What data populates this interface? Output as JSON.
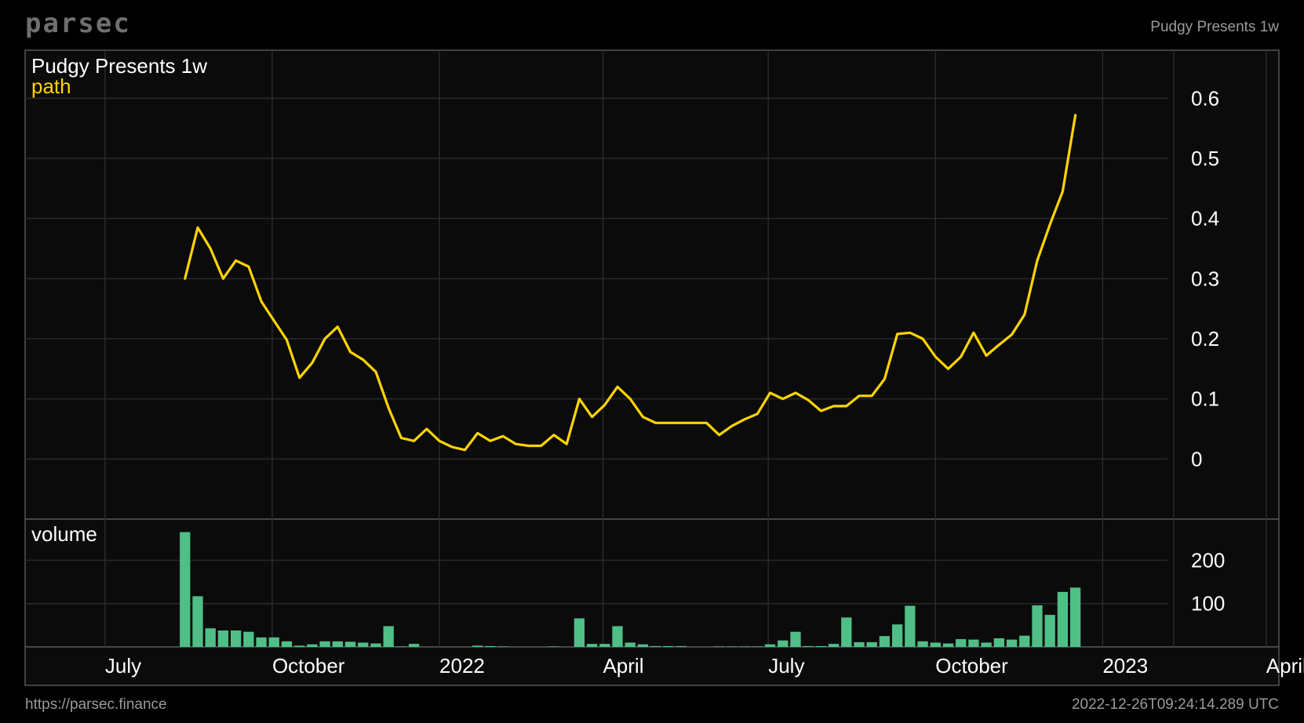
{
  "header": {
    "logo": "parsec",
    "right_label": "Pudgy Presents 1w"
  },
  "footer": {
    "url": "https://parsec.finance",
    "timestamp": "2022-12-26T09:24:14.289 UTC"
  },
  "colors": {
    "background": "#000000",
    "panel": "#0b0b0b",
    "grid": "#2a2a2a",
    "border": "#555555",
    "line": "#ffd400",
    "volume": "#4fbf87"
  },
  "chart_data": {
    "type": "line",
    "title": "Pudgy Presents 1w",
    "series_label": "path",
    "volume_label": "volume",
    "x_ticks": [
      {
        "label": "July",
        "date": "2021-07-01"
      },
      {
        "label": "October",
        "date": "2021-10-01"
      },
      {
        "label": "2022",
        "date": "2022-01-01"
      },
      {
        "label": "April",
        "date": "2022-04-01"
      },
      {
        "label": "July",
        "date": "2022-07-01"
      },
      {
        "label": "October",
        "date": "2022-10-01"
      },
      {
        "label": "2023",
        "date": "2023-01-01"
      },
      {
        "label": "April",
        "date": "2023-04-01"
      }
    ],
    "x_range": [
      "2021-05-18",
      "2023-04-08"
    ],
    "price": {
      "ylim": [
        -0.1,
        0.68
      ],
      "y_ticks": [
        {
          "label": "0",
          "value": 0
        },
        {
          "label": "0.1",
          "value": 0.1
        },
        {
          "label": "0.2",
          "value": 0.2
        },
        {
          "label": "0.3",
          "value": 0.3
        },
        {
          "label": "0.4",
          "value": 0.4
        },
        {
          "label": "0.5",
          "value": 0.5
        },
        {
          "label": "0.6",
          "value": 0.6
        }
      ]
    },
    "volume": {
      "ylim": [
        0,
        295
      ],
      "y_ticks": [
        {
          "label": "100",
          "value": 100
        },
        {
          "label": "200",
          "value": 200
        }
      ]
    },
    "series_start": "2021-08-14",
    "series_step_days": 7,
    "values": [
      0.3,
      0.385,
      0.35,
      0.3,
      0.33,
      0.32,
      0.262,
      0.23,
      0.198,
      0.135,
      0.16,
      0.2,
      0.22,
      0.178,
      0.165,
      0.145,
      0.085,
      0.035,
      0.03,
      0.05,
      0.03,
      0.02,
      0.015,
      0.043,
      0.03,
      0.038,
      0.025,
      0.022,
      0.022,
      0.04,
      0.025,
      0.1,
      0.07,
      0.09,
      0.12,
      0.1,
      0.07,
      0.06,
      0.06,
      0.06,
      0.06,
      0.06,
      0.04,
      0.055,
      0.066,
      0.075,
      0.11,
      0.1,
      0.11,
      0.098,
      0.08,
      0.088,
      0.088,
      0.105,
      0.105,
      0.133,
      0.208,
      0.21,
      0.2,
      0.17,
      0.15,
      0.17,
      0.21,
      0.172,
      0.19,
      0.207,
      0.24,
      0.33,
      0.39,
      0.445,
      0.572
    ],
    "volumes": [
      265,
      117,
      43,
      38,
      38,
      35,
      22,
      22,
      13,
      3,
      6,
      13,
      13,
      12,
      10,
      8,
      48,
      1,
      7,
      0,
      0,
      0,
      0,
      3,
      2,
      1,
      0,
      0,
      0,
      1,
      0,
      66,
      7,
      7,
      48,
      10,
      6,
      2,
      2,
      2,
      0,
      0,
      1,
      1,
      1,
      1,
      6,
      15,
      35,
      2,
      2,
      7,
      68,
      11,
      11,
      25,
      52,
      95,
      13,
      10,
      8,
      18,
      17,
      10,
      20,
      17,
      26,
      96,
      74,
      127,
      137
    ]
  }
}
